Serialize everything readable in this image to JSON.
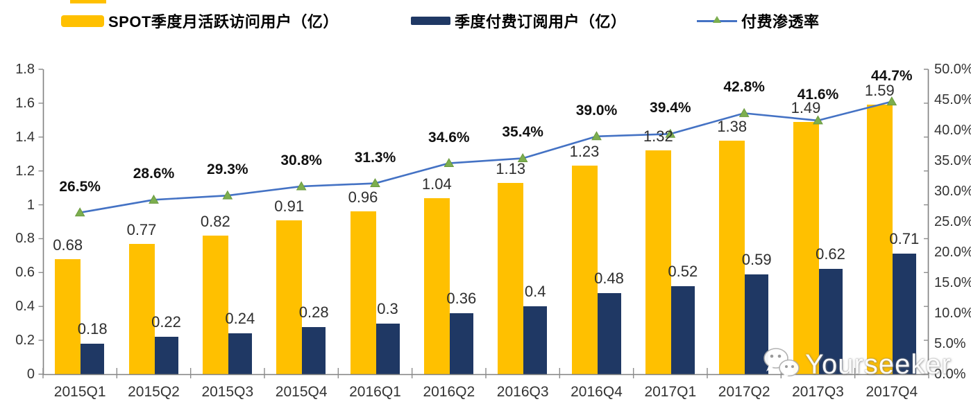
{
  "legend": {
    "items": [
      {
        "label": "SPOT季度月活跃访问用户（亿）",
        "swatch_color": "#FFC000",
        "type": "bar-swatch"
      },
      {
        "label": "季度付费订阅用户（亿）",
        "swatch_color": "#1F3864",
        "type": "bar-swatch"
      },
      {
        "label": "付费渗透率",
        "line_color": "#4472C4",
        "marker_color": "#7CAE4F",
        "type": "line-marker"
      }
    ]
  },
  "chart_data": {
    "type": "bar",
    "title": "",
    "categories": [
      "2015Q1",
      "2015Q2",
      "2015Q3",
      "2015Q4",
      "2016Q1",
      "2016Q2",
      "2016Q3",
      "2016Q4",
      "2017Q1",
      "2017Q2",
      "2017Q3",
      "2017Q4"
    ],
    "series": [
      {
        "name": "SPOT季度月活跃访问用户（亿）",
        "type": "bar",
        "color": "#FFC000",
        "axis": "left",
        "values": [
          0.68,
          0.77,
          0.82,
          0.91,
          0.96,
          1.04,
          1.13,
          1.23,
          1.32,
          1.38,
          1.49,
          1.59
        ],
        "labels": [
          "0.68",
          "0.77",
          "0.82",
          "0.91",
          "0.96",
          "1.04",
          "1.13",
          "1.23",
          "1.32",
          "1.38",
          "1.49",
          "1.59"
        ]
      },
      {
        "name": "季度付费订阅用户（亿）",
        "type": "bar",
        "color": "#1F3864",
        "axis": "left",
        "values": [
          0.18,
          0.22,
          0.24,
          0.28,
          0.3,
          0.36,
          0.4,
          0.48,
          0.52,
          0.59,
          0.62,
          0.71
        ],
        "labels": [
          "0.18",
          "0.22",
          "0.24",
          "0.28",
          "0.3",
          "0.36",
          "0.4",
          "0.48",
          "0.52",
          "0.59",
          "0.62",
          "0.71"
        ]
      },
      {
        "name": "付费渗透率",
        "type": "line",
        "color": "#4472C4",
        "marker": "triangle",
        "marker_color": "#7CAE4F",
        "axis": "right",
        "values": [
          26.5,
          28.6,
          29.3,
          30.8,
          31.3,
          34.6,
          35.4,
          39.0,
          39.4,
          42.8,
          41.6,
          44.7
        ],
        "labels": [
          "26.5%",
          "28.6%",
          "29.3%",
          "30.8%",
          "31.3%",
          "34.6%",
          "35.4%",
          "39.0%",
          "39.4%",
          "42.8%",
          "41.6%",
          "44.7%"
        ]
      }
    ],
    "left_axis": {
      "min": 0,
      "max": 1.8,
      "ticks": [
        "1.8",
        "1.6",
        "1.4",
        "1.2",
        "1",
        "0.8",
        "0.6",
        "0.4",
        "0.2",
        "0"
      ]
    },
    "right_axis": {
      "min": 0,
      "max": 50,
      "ticks": [
        "50.0%",
        "45.0%",
        "40.0%",
        "35.0%",
        "30.0%",
        "25.0%",
        "20.0%",
        "15.0%",
        "10.0%",
        "5.0%",
        "0.0%"
      ]
    },
    "grid": false,
    "legend_position": "top"
  },
  "watermark": {
    "text": "Yourseeker",
    "icon": "wechat-icon"
  }
}
